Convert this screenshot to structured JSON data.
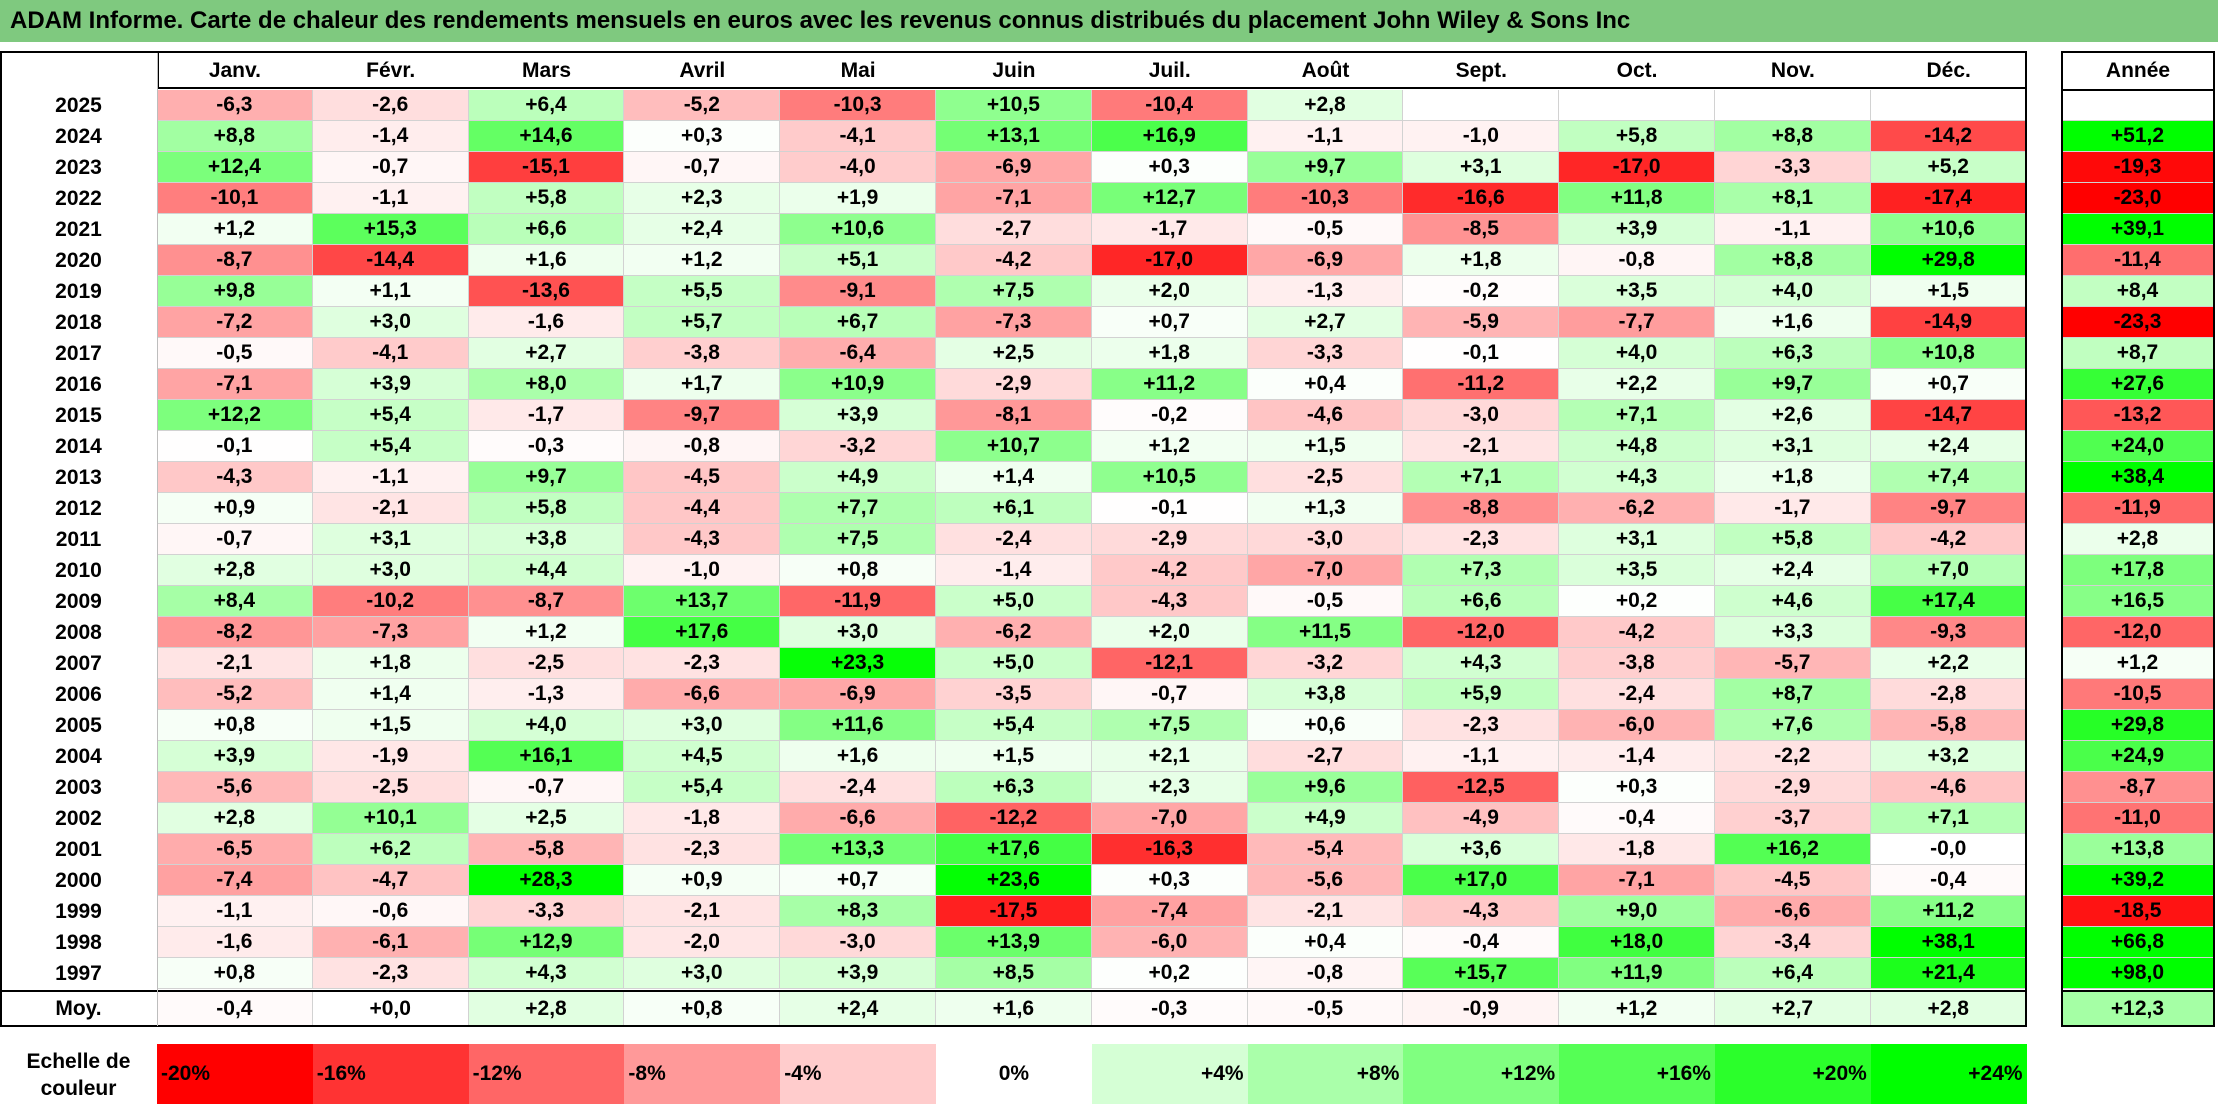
{
  "title": "ADAM Informe. Carte de chaleur des rendements mensuels en euros avec les revenus connus distribués du placement John Wiley & Sons Inc",
  "colors": {
    "title_bg": "#7fc97f",
    "negative_max": "#ff0000",
    "neutral": "#ffffff",
    "positive_max": "#00ff00"
  },
  "chart_data": {
    "type": "heatmap",
    "title": "ADAM Informe. Carte de chaleur des rendements mensuels en euros avec les revenus connus distribués du placement John Wiley & Sons Inc",
    "months": [
      "Janv.",
      "Févr.",
      "Mars",
      "Avril",
      "Mai",
      "Juin",
      "Juil.",
      "Août",
      "Sept.",
      "Oct.",
      "Nov.",
      "Déc."
    ],
    "year_header": "Année",
    "rows": [
      {
        "year": "2025",
        "values": [
          "-6,3",
          "-2,6",
          "+6,4",
          "-5,2",
          "-10,3",
          "+10,5",
          "-10,4",
          "+2,8",
          "",
          "",
          "",
          ""
        ],
        "annual": ""
      },
      {
        "year": "2024",
        "values": [
          "+8,8",
          "-1,4",
          "+14,6",
          "+0,3",
          "-4,1",
          "+13,1",
          "+16,9",
          "-1,1",
          "-1,0",
          "+5,8",
          "+8,8",
          "-14,2"
        ],
        "annual": "+51,2"
      },
      {
        "year": "2023",
        "values": [
          "+12,4",
          "-0,7",
          "-15,1",
          "-0,7",
          "-4,0",
          "-6,9",
          "+0,3",
          "+9,7",
          "+3,1",
          "-17,0",
          "-3,3",
          "+5,2"
        ],
        "annual": "-19,3"
      },
      {
        "year": "2022",
        "values": [
          "-10,1",
          "-1,1",
          "+5,8",
          "+2,3",
          "+1,9",
          "-7,1",
          "+12,7",
          "-10,3",
          "-16,6",
          "+11,8",
          "+8,1",
          "-17,4"
        ],
        "annual": "-23,0"
      },
      {
        "year": "2021",
        "values": [
          "+1,2",
          "+15,3",
          "+6,6",
          "+2,4",
          "+10,6",
          "-2,7",
          "-1,7",
          "-0,5",
          "-8,5",
          "+3,9",
          "-1,1",
          "+10,6"
        ],
        "annual": "+39,1"
      },
      {
        "year": "2020",
        "values": [
          "-8,7",
          "-14,4",
          "+1,6",
          "+1,2",
          "+5,1",
          "-4,2",
          "-17,0",
          "-6,9",
          "+1,8",
          "-0,8",
          "+8,8",
          "+29,8"
        ],
        "annual": "-11,4"
      },
      {
        "year": "2019",
        "values": [
          "+9,8",
          "+1,1",
          "-13,6",
          "+5,5",
          "-9,1",
          "+7,5",
          "+2,0",
          "-1,3",
          "-0,2",
          "+3,5",
          "+4,0",
          "+1,5"
        ],
        "annual": "+8,4"
      },
      {
        "year": "2018",
        "values": [
          "-7,2",
          "+3,0",
          "-1,6",
          "+5,7",
          "+6,7",
          "-7,3",
          "+0,7",
          "+2,7",
          "-5,9",
          "-7,7",
          "+1,6",
          "-14,9"
        ],
        "annual": "-23,3"
      },
      {
        "year": "2017",
        "values": [
          "-0,5",
          "-4,1",
          "+2,7",
          "-3,8",
          "-6,4",
          "+2,5",
          "+1,8",
          "-3,3",
          "-0,1",
          "+4,0",
          "+6,3",
          "+10,8"
        ],
        "annual": "+8,7"
      },
      {
        "year": "2016",
        "values": [
          "-7,1",
          "+3,9",
          "+8,0",
          "+1,7",
          "+10,9",
          "-2,9",
          "+11,2",
          "+0,4",
          "-11,2",
          "+2,2",
          "+9,7",
          "+0,7"
        ],
        "annual": "+27,6"
      },
      {
        "year": "2015",
        "values": [
          "+12,2",
          "+5,4",
          "-1,7",
          "-9,7",
          "+3,9",
          "-8,1",
          "-0,2",
          "-4,6",
          "-3,0",
          "+7,1",
          "+2,6",
          "-14,7"
        ],
        "annual": "-13,2"
      },
      {
        "year": "2014",
        "values": [
          "-0,1",
          "+5,4",
          "-0,3",
          "-0,8",
          "-3,2",
          "+10,7",
          "+1,2",
          "+1,5",
          "-2,1",
          "+4,8",
          "+3,1",
          "+2,4"
        ],
        "annual": "+24,0"
      },
      {
        "year": "2013",
        "values": [
          "-4,3",
          "-1,1",
          "+9,7",
          "-4,5",
          "+4,9",
          "+1,4",
          "+10,5",
          "-2,5",
          "+7,1",
          "+4,3",
          "+1,8",
          "+7,4"
        ],
        "annual": "+38,4"
      },
      {
        "year": "2012",
        "values": [
          "+0,9",
          "-2,1",
          "+5,8",
          "-4,4",
          "+7,7",
          "+6,1",
          "-0,1",
          "+1,3",
          "-8,8",
          "-6,2",
          "-1,7",
          "-9,7"
        ],
        "annual": "-11,9"
      },
      {
        "year": "2011",
        "values": [
          "-0,7",
          "+3,1",
          "+3,8",
          "-4,3",
          "+7,5",
          "-2,4",
          "-2,9",
          "-3,0",
          "-2,3",
          "+3,1",
          "+5,8",
          "-4,2"
        ],
        "annual": "+2,8"
      },
      {
        "year": "2010",
        "values": [
          "+2,8",
          "+3,0",
          "+4,4",
          "-1,0",
          "+0,8",
          "-1,4",
          "-4,2",
          "-7,0",
          "+7,3",
          "+3,5",
          "+2,4",
          "+7,0"
        ],
        "annual": "+17,8"
      },
      {
        "year": "2009",
        "values": [
          "+8,4",
          "-10,2",
          "-8,7",
          "+13,7",
          "-11,9",
          "+5,0",
          "-4,3",
          "-0,5",
          "+6,6",
          "+0,2",
          "+4,6",
          "+17,4"
        ],
        "annual": "+16,5"
      },
      {
        "year": "2008",
        "values": [
          "-8,2",
          "-7,3",
          "+1,2",
          "+17,6",
          "+3,0",
          "-6,2",
          "+2,0",
          "+11,5",
          "-12,0",
          "-4,2",
          "+3,3",
          "-9,3"
        ],
        "annual": "-12,0"
      },
      {
        "year": "2007",
        "values": [
          "-2,1",
          "+1,8",
          "-2,5",
          "-2,3",
          "+23,3",
          "+5,0",
          "-12,1",
          "-3,2",
          "+4,3",
          "-3,8",
          "-5,7",
          "+2,2"
        ],
        "annual": "+1,2"
      },
      {
        "year": "2006",
        "values": [
          "-5,2",
          "+1,4",
          "-1,3",
          "-6,6",
          "-6,9",
          "-3,5",
          "-0,7",
          "+3,8",
          "+5,9",
          "-2,4",
          "+8,7",
          "-2,8"
        ],
        "annual": "-10,5"
      },
      {
        "year": "2005",
        "values": [
          "+0,8",
          "+1,5",
          "+4,0",
          "+3,0",
          "+11,6",
          "+5,4",
          "+7,5",
          "+0,6",
          "-2,3",
          "-6,0",
          "+7,6",
          "-5,8"
        ],
        "annual": "+29,8"
      },
      {
        "year": "2004",
        "values": [
          "+3,9",
          "-1,9",
          "+16,1",
          "+4,5",
          "+1,6",
          "+1,5",
          "+2,1",
          "-2,7",
          "-1,1",
          "-1,4",
          "-2,2",
          "+3,2"
        ],
        "annual": "+24,9"
      },
      {
        "year": "2003",
        "values": [
          "-5,6",
          "-2,5",
          "-0,7",
          "+5,4",
          "-2,4",
          "+6,3",
          "+2,3",
          "+9,6",
          "-12,5",
          "+0,3",
          "-2,9",
          "-4,6"
        ],
        "annual": "-8,7"
      },
      {
        "year": "2002",
        "values": [
          "+2,8",
          "+10,1",
          "+2,5",
          "-1,8",
          "-6,6",
          "-12,2",
          "-7,0",
          "+4,9",
          "-4,9",
          "-0,4",
          "-3,7",
          "+7,1"
        ],
        "annual": "-11,0"
      },
      {
        "year": "2001",
        "values": [
          "-6,5",
          "+6,2",
          "-5,8",
          "-2,3",
          "+13,3",
          "+17,6",
          "-16,3",
          "-5,4",
          "+3,6",
          "-1,8",
          "+16,2",
          "-0,0"
        ],
        "annual": "+13,8"
      },
      {
        "year": "2000",
        "values": [
          "-7,4",
          "-4,7",
          "+28,3",
          "+0,9",
          "+0,7",
          "+23,6",
          "+0,3",
          "-5,6",
          "+17,0",
          "-7,1",
          "-4,5",
          "-0,4"
        ],
        "annual": "+39,2"
      },
      {
        "year": "1999",
        "values": [
          "-1,1",
          "-0,6",
          "-3,3",
          "-2,1",
          "+8,3",
          "-17,5",
          "-7,4",
          "-2,1",
          "-4,3",
          "+9,0",
          "-6,6",
          "+11,2"
        ],
        "annual": "-18,5"
      },
      {
        "year": "1998",
        "values": [
          "-1,6",
          "-6,1",
          "+12,9",
          "-2,0",
          "-3,0",
          "+13,9",
          "-6,0",
          "+0,4",
          "-0,4",
          "+18,0",
          "-3,4",
          "+38,1"
        ],
        "annual": "+66,8"
      },
      {
        "year": "1997",
        "values": [
          "+0,8",
          "-2,3",
          "+4,3",
          "+3,0",
          "+3,9",
          "+8,5",
          "+0,2",
          "-0,8",
          "+15,7",
          "+11,9",
          "+6,4",
          "+21,4"
        ],
        "annual": "+98,0"
      }
    ],
    "average": {
      "label": "Moy.",
      "values": [
        "-0,4",
        "+0,0",
        "+2,8",
        "+0,8",
        "+2,4",
        "+1,6",
        "-0,3",
        "-0,5",
        "-0,9",
        "+1,2",
        "+2,7",
        "+2,8"
      ],
      "annual": "+12,3"
    },
    "scale": {
      "label": "Echelle de couleur",
      "steps": [
        {
          "label": "-20%",
          "value": -20
        },
        {
          "label": "-16%",
          "value": -16
        },
        {
          "label": "-12%",
          "value": -12
        },
        {
          "label": "-8%",
          "value": -8
        },
        {
          "label": "-4%",
          "value": -4
        },
        {
          "label": "0%",
          "value": 0
        },
        {
          "label": "+4%",
          "value": 4
        },
        {
          "label": "+8%",
          "value": 8
        },
        {
          "label": "+12%",
          "value": 12
        },
        {
          "label": "+16%",
          "value": 16
        },
        {
          "label": "+20%",
          "value": 20
        },
        {
          "label": "+24%",
          "value": 24
        }
      ]
    }
  }
}
